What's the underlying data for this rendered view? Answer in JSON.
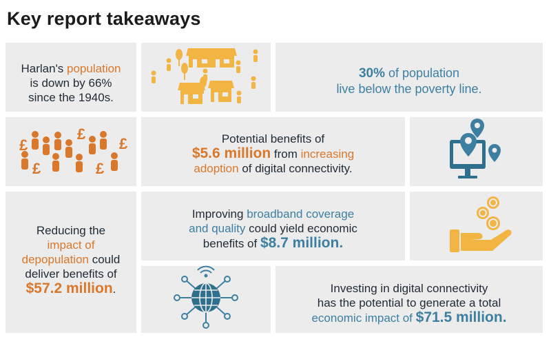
{
  "heading": "Key report takeaways",
  "colors": {
    "orange": "#d9772a",
    "blue": "#3d7fa0",
    "yellow": "#f2b544",
    "panel": "#ececec"
  },
  "icons": {
    "houses": "village-houses-people-icon",
    "pound_people": "pound-sign-people-crowd-icon",
    "computer": "computer-location-pins-icon",
    "coins": "hand-holding-coins-icon",
    "globe": "network-globe-icon"
  },
  "population": {
    "l1a": "Harlan's ",
    "l1b": "population",
    "l2": "is down by 66%",
    "l3": "since the 1940s."
  },
  "poverty": {
    "pct": "30%",
    "l1": " of population",
    "l2": "live below the poverty line."
  },
  "benefits": {
    "l1": "Potential benefits of",
    "amount": "$5.6 million",
    "l2a": " from ",
    "l2b": "increasing",
    "l3a": "adoption",
    "l3b": " of digital connectivity."
  },
  "broadband": {
    "l1a": "Improving ",
    "l1b": "broadband coverage",
    "l2a": "and quality",
    "l2b": " could yield economic",
    "l3": "benefits of ",
    "amount": "$8.7 million."
  },
  "depopulation": {
    "l1": "Reducing the",
    "l2": "impact of",
    "l3a": "depopulation",
    "l3b": " could",
    "l4": "deliver benefits of",
    "amount": "$57.2 million",
    "tail": "."
  },
  "investing": {
    "l1": "Investing in digital connectivity",
    "l2": "has the potential to generate a total",
    "l3": "economic impact of ",
    "amount": "$71.5 million."
  }
}
